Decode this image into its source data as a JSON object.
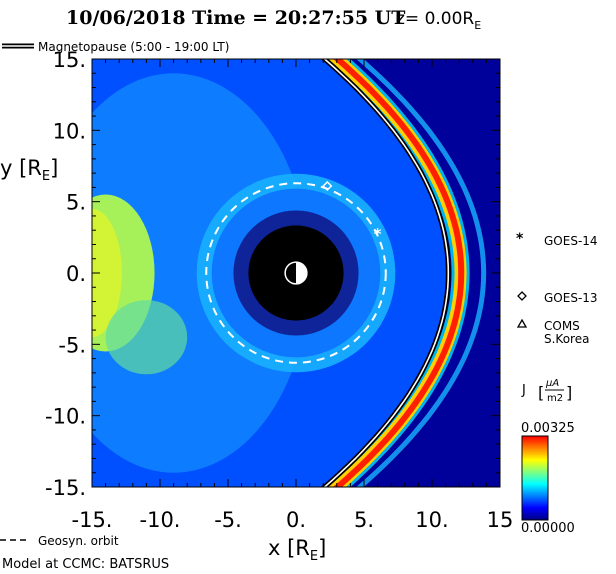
{
  "chart_data": {
    "type": "heatmap",
    "title_date": "10/06/2018",
    "title_time_label": "Time = 20:27:55 UT",
    "title_z_label": "z= 0.00R",
    "title_z_sub": "E",
    "x_label_main": "x [R",
    "x_label_sub": "E",
    "x_label_close": "]",
    "y_label_main": "y [R",
    "y_label_sub": "E",
    "y_label_close": "]",
    "xlim": [
      -15,
      15
    ],
    "ylim": [
      -15,
      15
    ],
    "x_ticks": [
      {
        "value": -15,
        "label": "-15."
      },
      {
        "value": -10,
        "label": "-10."
      },
      {
        "value": -5,
        "label": "-5."
      },
      {
        "value": 0,
        "label": "0."
      },
      {
        "value": 5,
        "label": "5."
      },
      {
        "value": 10,
        "label": "10."
      },
      {
        "value": 15,
        "label": "15"
      }
    ],
    "y_ticks": [
      {
        "value": 15,
        "label": "15."
      },
      {
        "value": 10,
        "label": "10."
      },
      {
        "value": 5,
        "label": "5."
      },
      {
        "value": 0,
        "label": "0."
      },
      {
        "value": -5,
        "label": "-5."
      },
      {
        "value": -10,
        "label": "-10."
      },
      {
        "value": -15,
        "label": "-15."
      }
    ],
    "magnetopause": {
      "label": "Magnetopause (5:00 - 19:00 LT)",
      "subsolar_x": 11.2,
      "flank_x_at_y15": 2.1
    },
    "earth_radius": 3.5,
    "geosync_orbit": {
      "label": "Geosyn. orbit",
      "radius": 6.6
    },
    "satellites": [
      {
        "name": "GOES-14",
        "marker": "asterisk",
        "x": 6.0,
        "y": 2.8
      },
      {
        "name": "GOES-13",
        "marker": "diamond",
        "x": 2.3,
        "y": 6.1
      },
      {
        "name": "COMS",
        "name_line2": "S.Korea",
        "marker": "triangle"
      }
    ],
    "colorbar": {
      "quantity": "J",
      "unit_num": "μA",
      "unit_den": "m2",
      "max_label": "0.00325",
      "min_label": "0.00000",
      "colors": [
        "#000080",
        "#0000ff",
        "#0080ff",
        "#00ffff",
        "#80ff80",
        "#ffff00",
        "#ff8000",
        "#ff0000"
      ]
    },
    "footer": "Model at CCMC: BATSRUS"
  }
}
